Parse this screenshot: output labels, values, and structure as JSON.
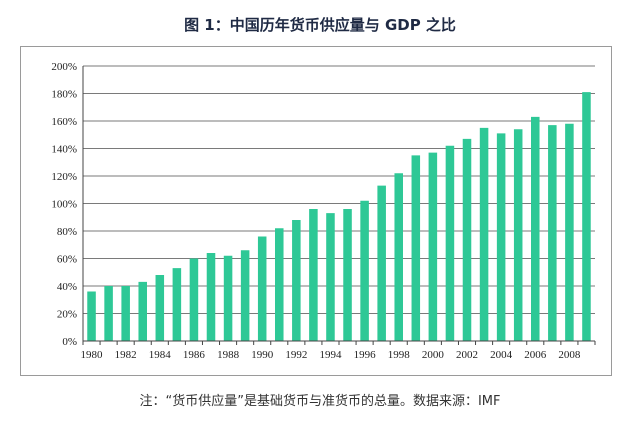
{
  "title": "图 1：中国历年货币供应量与 GDP 之比",
  "note": "注：“货币供应量”是基础货币与准货币的总量。数据来源：IMF",
  "colors": {
    "bar": "#2ec896",
    "grid": "#7a7a7a",
    "axis": "#444444"
  },
  "chart_data": {
    "type": "bar",
    "title": "图 1：中国历年货币供应量与 GDP 之比",
    "xlabel": "",
    "ylabel": "",
    "ylim": [
      0,
      200
    ],
    "y_ticks": [
      "0%",
      "20%",
      "40%",
      "60%",
      "80%",
      "100%",
      "120%",
      "140%",
      "160%",
      "180%",
      "200%"
    ],
    "x_tick_labels": [
      "1980",
      "1982",
      "1984",
      "1986",
      "1988",
      "1990",
      "1992",
      "1994",
      "1996",
      "1998",
      "2000",
      "2002",
      "2004",
      "2006",
      "2008"
    ],
    "grid": true,
    "legend": "none",
    "categories": [
      "1980",
      "1981",
      "1982",
      "1983",
      "1984",
      "1985",
      "1986",
      "1987",
      "1988",
      "1989",
      "1990",
      "1991",
      "1992",
      "1993",
      "1994",
      "1995",
      "1996",
      "1997",
      "1998",
      "1999",
      "2000",
      "2001",
      "2002",
      "2003",
      "2004",
      "2005",
      "2006",
      "2007",
      "2008",
      "2009"
    ],
    "values": [
      36,
      40,
      40,
      43,
      48,
      53,
      60,
      64,
      62,
      66,
      76,
      82,
      88,
      96,
      93,
      96,
      102,
      113,
      122,
      135,
      137,
      142,
      147,
      155,
      151,
      154,
      163,
      157,
      158,
      181
    ]
  }
}
